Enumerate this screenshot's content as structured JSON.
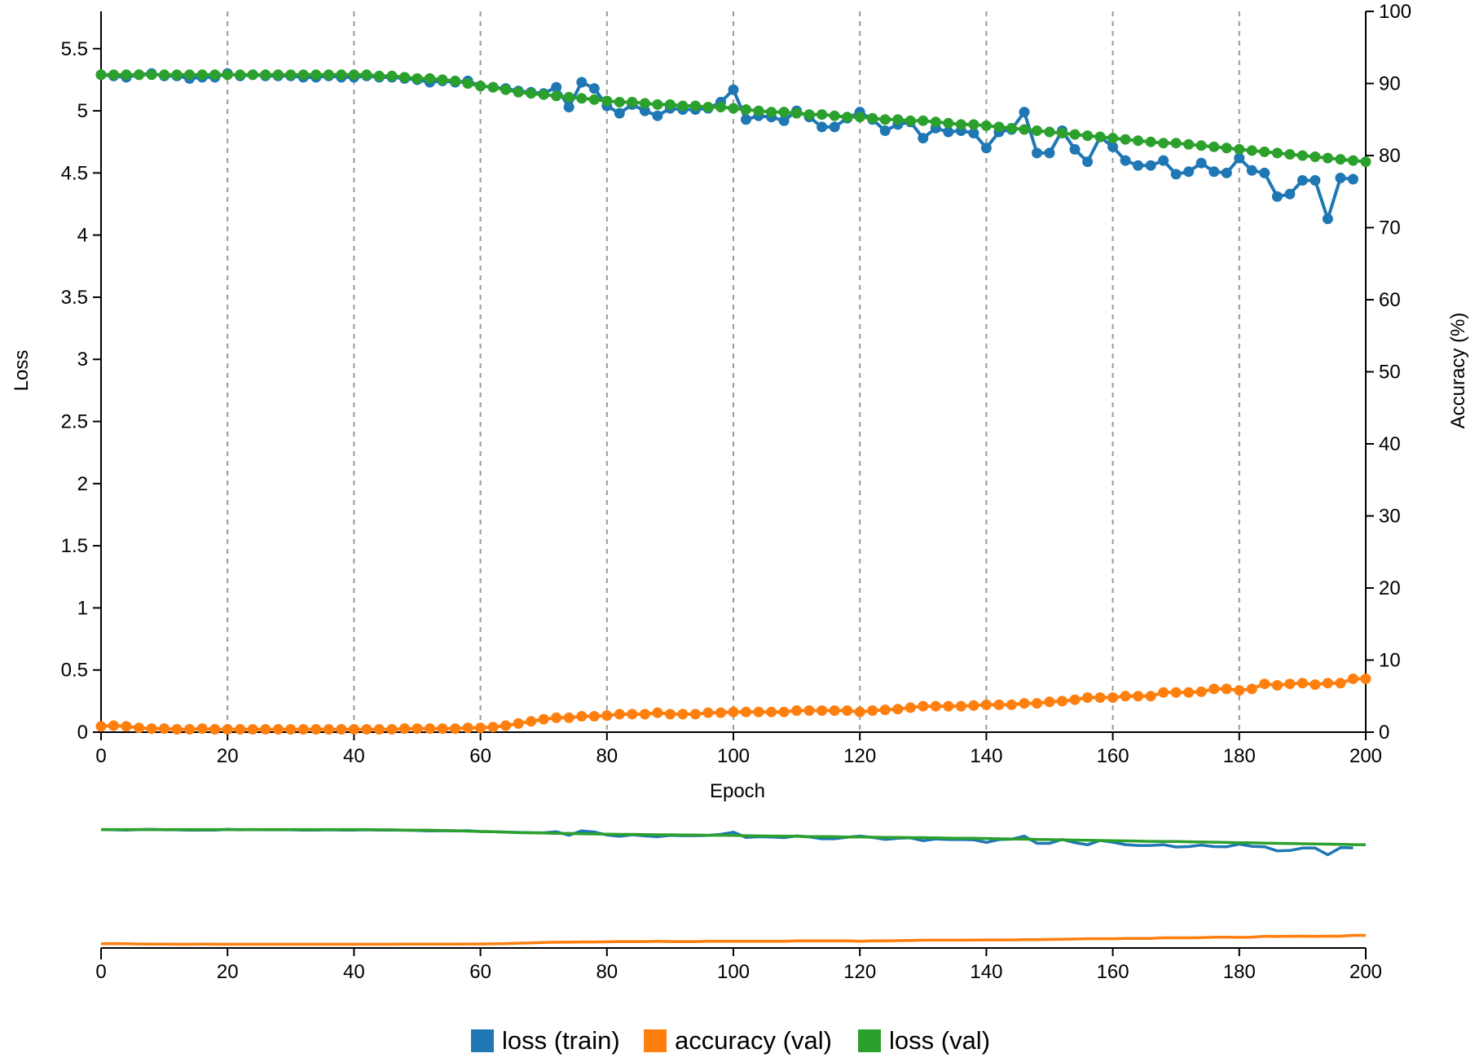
{
  "chart_data": {
    "type": "line",
    "xlabel": "Epoch",
    "ylabel_left": "Loss",
    "ylabel_right": "Accuracy (%)",
    "xlim": [
      0,
      200
    ],
    "ylim_left": [
      0,
      5.8
    ],
    "ylim_right": [
      0,
      100
    ],
    "x_ticks": [
      "0",
      "20",
      "40",
      "60",
      "80",
      "100",
      "120",
      "140",
      "160",
      "180",
      "200"
    ],
    "y_ticks_left": [
      "0",
      "0.5",
      "1",
      "1.5",
      "2",
      "2.5",
      "3",
      "3.5",
      "4",
      "4.5",
      "5",
      "5.5"
    ],
    "y_ticks_right": [
      "0",
      "10",
      "20",
      "30",
      "40",
      "50",
      "60",
      "70",
      "80",
      "90",
      "100"
    ],
    "grid": "vertical dashed",
    "legend_position": "bottom-center",
    "overview_brush": true,
    "series": [
      {
        "name": "loss (train)",
        "axis": "left",
        "color": "#1f77b4",
        "x": [
          0,
          2,
          4,
          6,
          8,
          10,
          12,
          14,
          16,
          18,
          20,
          22,
          24,
          26,
          28,
          30,
          32,
          34,
          36,
          38,
          40,
          42,
          44,
          46,
          48,
          50,
          52,
          54,
          56,
          58,
          60,
          62,
          64,
          66,
          68,
          70,
          72,
          74,
          76,
          78,
          80,
          82,
          84,
          86,
          88,
          90,
          92,
          94,
          96,
          98,
          100,
          102,
          104,
          106,
          108,
          110,
          112,
          114,
          116,
          118,
          120,
          122,
          124,
          126,
          128,
          130,
          132,
          134,
          136,
          138,
          140,
          142,
          144,
          146,
          148,
          150,
          152,
          154,
          156,
          158,
          160,
          162,
          164,
          166,
          168,
          170,
          172,
          174,
          176,
          178,
          180,
          182,
          184,
          186,
          188,
          190,
          192,
          194,
          196,
          198
        ],
        "values": [
          5.29,
          5.28,
          5.27,
          5.29,
          5.3,
          5.28,
          5.28,
          5.26,
          5.27,
          5.27,
          5.3,
          5.28,
          5.29,
          5.28,
          5.28,
          5.28,
          5.27,
          5.27,
          5.28,
          5.27,
          5.27,
          5.28,
          5.27,
          5.27,
          5.26,
          5.25,
          5.23,
          5.24,
          5.23,
          5.24,
          5.2,
          5.19,
          5.18,
          5.16,
          5.15,
          5.14,
          5.19,
          5.03,
          5.23,
          5.18,
          5.04,
          4.98,
          5.05,
          5.0,
          4.96,
          5.02,
          5.01,
          5.01,
          5.02,
          5.07,
          5.17,
          4.93,
          4.96,
          4.95,
          4.92,
          5.0,
          4.95,
          4.87,
          4.87,
          4.94,
          4.99,
          4.93,
          4.84,
          4.89,
          4.91,
          4.78,
          4.86,
          4.83,
          4.84,
          4.82,
          4.7,
          4.83,
          4.85,
          4.99,
          4.66,
          4.66,
          4.84,
          4.69,
          4.59,
          4.79,
          4.71,
          4.6,
          4.56,
          4.56,
          4.6,
          4.49,
          4.51,
          4.58,
          4.51,
          4.5,
          4.62,
          4.52,
          4.5,
          4.31,
          4.33,
          4.44,
          4.44,
          4.13,
          4.46,
          4.45
        ]
      },
      {
        "name": "accuracy (val)",
        "axis": "right",
        "color": "#ff7f0e",
        "x": [
          0,
          2,
          4,
          6,
          8,
          10,
          12,
          14,
          16,
          18,
          20,
          22,
          24,
          26,
          28,
          30,
          32,
          34,
          36,
          38,
          40,
          42,
          44,
          46,
          48,
          50,
          52,
          54,
          56,
          58,
          60,
          62,
          64,
          66,
          68,
          70,
          72,
          74,
          76,
          78,
          80,
          82,
          84,
          86,
          88,
          90,
          92,
          94,
          96,
          98,
          100,
          102,
          104,
          106,
          108,
          110,
          112,
          114,
          116,
          118,
          120,
          122,
          124,
          126,
          128,
          130,
          132,
          134,
          136,
          138,
          140,
          142,
          144,
          146,
          148,
          150,
          152,
          154,
          156,
          158,
          160,
          162,
          164,
          166,
          168,
          170,
          172,
          174,
          176,
          178,
          180,
          182,
          184,
          186,
          188,
          190,
          192,
          194,
          196,
          198,
          200
        ],
        "values": [
          0.8,
          0.9,
          0.8,
          0.6,
          0.5,
          0.5,
          0.4,
          0.4,
          0.5,
          0.4,
          0.4,
          0.4,
          0.4,
          0.4,
          0.4,
          0.4,
          0.4,
          0.4,
          0.4,
          0.4,
          0.4,
          0.4,
          0.4,
          0.4,
          0.5,
          0.5,
          0.5,
          0.5,
          0.5,
          0.6,
          0.6,
          0.7,
          0.9,
          1.2,
          1.5,
          1.8,
          2.0,
          2.0,
          2.2,
          2.2,
          2.3,
          2.5,
          2.5,
          2.5,
          2.7,
          2.5,
          2.5,
          2.5,
          2.7,
          2.7,
          2.8,
          2.8,
          2.8,
          2.8,
          2.8,
          3.0,
          3.0,
          3.0,
          3.0,
          3.0,
          2.8,
          3.0,
          3.1,
          3.2,
          3.4,
          3.6,
          3.6,
          3.6,
          3.6,
          3.7,
          3.8,
          3.8,
          3.8,
          4.0,
          4.0,
          4.2,
          4.3,
          4.5,
          4.8,
          4.8,
          4.8,
          5.0,
          5.0,
          5.0,
          5.5,
          5.5,
          5.5,
          5.6,
          6.0,
          6.0,
          5.8,
          6.0,
          6.7,
          6.5,
          6.7,
          6.8,
          6.6,
          6.8,
          6.8,
          7.4,
          7.4
        ]
      },
      {
        "name": "loss (val)",
        "axis": "left",
        "color": "#2ca02c",
        "x": [
          0,
          2,
          4,
          6,
          8,
          10,
          12,
          14,
          16,
          18,
          20,
          22,
          24,
          26,
          28,
          30,
          32,
          34,
          36,
          38,
          40,
          42,
          44,
          46,
          48,
          50,
          52,
          54,
          56,
          58,
          60,
          62,
          64,
          66,
          68,
          70,
          72,
          74,
          76,
          78,
          80,
          82,
          84,
          86,
          88,
          90,
          92,
          94,
          96,
          98,
          100,
          102,
          104,
          106,
          108,
          110,
          112,
          114,
          116,
          118,
          120,
          122,
          124,
          126,
          128,
          130,
          132,
          134,
          136,
          138,
          140,
          142,
          144,
          146,
          148,
          150,
          152,
          154,
          156,
          158,
          160,
          162,
          164,
          166,
          168,
          170,
          172,
          174,
          176,
          178,
          180,
          182,
          184,
          186,
          188,
          190,
          192,
          194,
          196,
          198,
          200
        ],
        "values": [
          5.29,
          5.29,
          5.29,
          5.29,
          5.29,
          5.29,
          5.29,
          5.29,
          5.29,
          5.29,
          5.29,
          5.29,
          5.29,
          5.29,
          5.29,
          5.29,
          5.29,
          5.29,
          5.29,
          5.29,
          5.29,
          5.29,
          5.28,
          5.28,
          5.27,
          5.26,
          5.26,
          5.25,
          5.24,
          5.22,
          5.2,
          5.19,
          5.17,
          5.15,
          5.14,
          5.13,
          5.12,
          5.11,
          5.1,
          5.09,
          5.08,
          5.07,
          5.07,
          5.06,
          5.05,
          5.05,
          5.04,
          5.04,
          5.03,
          5.03,
          5.02,
          5.01,
          5.0,
          4.99,
          4.99,
          4.98,
          4.97,
          4.97,
          4.96,
          4.95,
          4.95,
          4.94,
          4.93,
          4.93,
          4.92,
          4.92,
          4.91,
          4.9,
          4.89,
          4.89,
          4.88,
          4.87,
          4.86,
          4.85,
          4.84,
          4.83,
          4.82,
          4.81,
          4.8,
          4.79,
          4.78,
          4.77,
          4.76,
          4.75,
          4.74,
          4.74,
          4.73,
          4.72,
          4.71,
          4.7,
          4.69,
          4.68,
          4.67,
          4.66,
          4.65,
          4.64,
          4.63,
          4.62,
          4.61,
          4.6,
          4.59
        ]
      }
    ]
  }
}
